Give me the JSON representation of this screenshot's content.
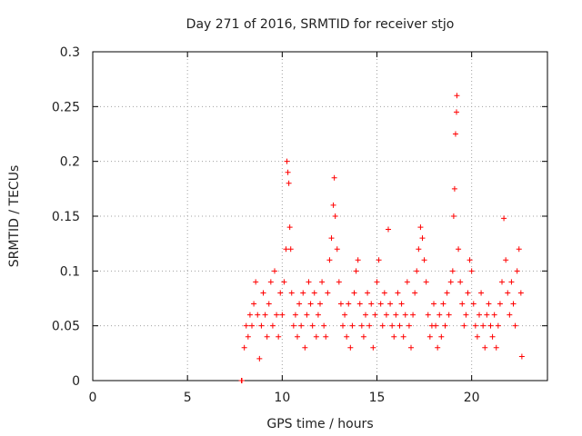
{
  "chart_data": {
    "type": "scatter",
    "title": "Day 271 of 2016, SRMTID for receiver stjo",
    "xlabel": "GPS time / hours",
    "ylabel": "SRMTID / TECUs",
    "xlim": [
      0,
      24
    ],
    "ylim": [
      0,
      0.3
    ],
    "xticks": [
      0,
      5,
      10,
      15,
      20
    ],
    "yticks": [
      0,
      0.05,
      0.1,
      0.15,
      0.2,
      0.25,
      0.3
    ],
    "xtick_labels": [
      "0",
      "5",
      "10",
      "15",
      "20"
    ],
    "ytick_labels": [
      "0",
      "0.05",
      "0.1",
      "0.15",
      "0.2",
      "0.25",
      "0.3"
    ],
    "grid": true,
    "marker": "+",
    "marker_color": "#ff0000",
    "series": [
      {
        "name": "stjo",
        "points": [
          [
            7.85,
            0.0
          ],
          [
            7.86,
            0.0
          ],
          [
            7.87,
            0.0
          ],
          [
            8.0,
            0.03
          ],
          [
            8.1,
            0.05
          ],
          [
            8.2,
            0.04
          ],
          [
            8.3,
            0.06
          ],
          [
            8.4,
            0.05
          ],
          [
            8.5,
            0.07
          ],
          [
            8.6,
            0.09
          ],
          [
            8.7,
            0.06
          ],
          [
            8.8,
            0.02
          ],
          [
            8.9,
            0.05
          ],
          [
            9.0,
            0.08
          ],
          [
            9.1,
            0.06
          ],
          [
            9.2,
            0.04
          ],
          [
            9.3,
            0.07
          ],
          [
            9.4,
            0.09
          ],
          [
            9.5,
            0.05
          ],
          [
            9.6,
            0.1
          ],
          [
            9.7,
            0.06
          ],
          [
            9.8,
            0.04
          ],
          [
            9.9,
            0.08
          ],
          [
            10.0,
            0.06
          ],
          [
            10.1,
            0.09
          ],
          [
            10.2,
            0.12
          ],
          [
            10.25,
            0.2
          ],
          [
            10.3,
            0.19
          ],
          [
            10.35,
            0.18
          ],
          [
            10.4,
            0.14
          ],
          [
            10.45,
            0.12
          ],
          [
            10.5,
            0.08
          ],
          [
            10.6,
            0.05
          ],
          [
            10.7,
            0.06
          ],
          [
            10.8,
            0.04
          ],
          [
            10.9,
            0.07
          ],
          [
            11.0,
            0.05
          ],
          [
            11.1,
            0.08
          ],
          [
            11.2,
            0.03
          ],
          [
            11.3,
            0.06
          ],
          [
            11.4,
            0.09
          ],
          [
            11.5,
            0.07
          ],
          [
            11.6,
            0.05
          ],
          [
            11.7,
            0.08
          ],
          [
            11.8,
            0.04
          ],
          [
            11.9,
            0.06
          ],
          [
            12.0,
            0.07
          ],
          [
            12.1,
            0.09
          ],
          [
            12.2,
            0.05
          ],
          [
            12.3,
            0.04
          ],
          [
            12.4,
            0.08
          ],
          [
            12.5,
            0.11
          ],
          [
            12.6,
            0.13
          ],
          [
            12.7,
            0.16
          ],
          [
            12.75,
            0.185
          ],
          [
            12.8,
            0.15
          ],
          [
            12.9,
            0.12
          ],
          [
            13.0,
            0.09
          ],
          [
            13.1,
            0.07
          ],
          [
            13.2,
            0.05
          ],
          [
            13.3,
            0.06
          ],
          [
            13.4,
            0.04
          ],
          [
            13.5,
            0.07
          ],
          [
            13.6,
            0.03
          ],
          [
            13.7,
            0.05
          ],
          [
            13.8,
            0.08
          ],
          [
            13.9,
            0.1
          ],
          [
            14.0,
            0.11
          ],
          [
            14.1,
            0.07
          ],
          [
            14.2,
            0.05
          ],
          [
            14.3,
            0.04
          ],
          [
            14.4,
            0.06
          ],
          [
            14.5,
            0.08
          ],
          [
            14.6,
            0.05
          ],
          [
            14.7,
            0.07
          ],
          [
            14.8,
            0.03
          ],
          [
            14.9,
            0.06
          ],
          [
            15.0,
            0.09
          ],
          [
            15.1,
            0.11
          ],
          [
            15.2,
            0.07
          ],
          [
            15.3,
            0.05
          ],
          [
            15.4,
            0.08
          ],
          [
            15.5,
            0.06
          ],
          [
            15.6,
            0.138
          ],
          [
            15.7,
            0.07
          ],
          [
            15.8,
            0.05
          ],
          [
            15.9,
            0.04
          ],
          [
            16.0,
            0.06
          ],
          [
            16.1,
            0.08
          ],
          [
            16.2,
            0.05
          ],
          [
            16.3,
            0.07
          ],
          [
            16.4,
            0.04
          ],
          [
            16.5,
            0.06
          ],
          [
            16.6,
            0.09
          ],
          [
            16.7,
            0.05
          ],
          [
            16.8,
            0.03
          ],
          [
            16.9,
            0.06
          ],
          [
            17.0,
            0.08
          ],
          [
            17.1,
            0.1
          ],
          [
            17.2,
            0.12
          ],
          [
            17.3,
            0.14
          ],
          [
            17.4,
            0.13
          ],
          [
            17.5,
            0.11
          ],
          [
            17.6,
            0.09
          ],
          [
            17.7,
            0.06
          ],
          [
            17.8,
            0.04
          ],
          [
            17.9,
            0.05
          ],
          [
            18.0,
            0.07
          ],
          [
            18.1,
            0.05
          ],
          [
            18.2,
            0.03
          ],
          [
            18.3,
            0.06
          ],
          [
            18.4,
            0.04
          ],
          [
            18.5,
            0.07
          ],
          [
            18.6,
            0.05
          ],
          [
            18.7,
            0.08
          ],
          [
            18.8,
            0.06
          ],
          [
            18.9,
            0.09
          ],
          [
            19.0,
            0.1
          ],
          [
            19.05,
            0.15
          ],
          [
            19.1,
            0.175
          ],
          [
            19.15,
            0.225
          ],
          [
            19.2,
            0.245
          ],
          [
            19.22,
            0.26
          ],
          [
            19.3,
            0.12
          ],
          [
            19.4,
            0.09
          ],
          [
            19.5,
            0.07
          ],
          [
            19.6,
            0.05
          ],
          [
            19.7,
            0.06
          ],
          [
            19.8,
            0.08
          ],
          [
            19.9,
            0.11
          ],
          [
            20.0,
            0.1
          ],
          [
            20.1,
            0.07
          ],
          [
            20.2,
            0.05
          ],
          [
            20.3,
            0.04
          ],
          [
            20.4,
            0.06
          ],
          [
            20.5,
            0.08
          ],
          [
            20.6,
            0.05
          ],
          [
            20.7,
            0.03
          ],
          [
            20.8,
            0.06
          ],
          [
            20.9,
            0.07
          ],
          [
            21.0,
            0.05
          ],
          [
            21.1,
            0.04
          ],
          [
            21.2,
            0.06
          ],
          [
            21.3,
            0.03
          ],
          [
            21.4,
            0.05
          ],
          [
            21.5,
            0.07
          ],
          [
            21.6,
            0.09
          ],
          [
            21.7,
            0.148
          ],
          [
            21.8,
            0.11
          ],
          [
            21.9,
            0.08
          ],
          [
            22.0,
            0.06
          ],
          [
            22.1,
            0.09
          ],
          [
            22.2,
            0.07
          ],
          [
            22.3,
            0.05
          ],
          [
            22.4,
            0.1
          ],
          [
            22.5,
            0.12
          ],
          [
            22.6,
            0.08
          ],
          [
            22.65,
            0.022
          ]
        ]
      }
    ]
  }
}
